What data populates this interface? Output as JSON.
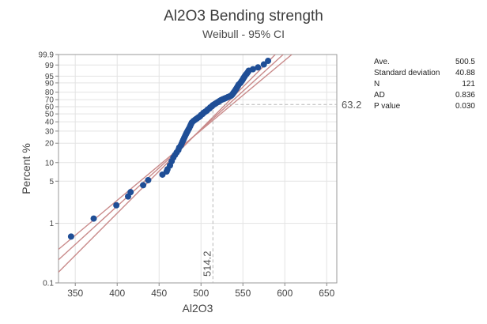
{
  "chart_data": {
    "type": "scatter",
    "title": "Al2O3 Bending strength",
    "subtitle": "Weibull - 95% CI",
    "xlabel": "Al2O3",
    "ylabel": "Percent %",
    "xlim": [
      330,
      662
    ],
    "x_ticks": [
      350,
      400,
      450,
      500,
      550,
      600,
      650
    ],
    "y_scale": "weibull",
    "ylim": [
      0.1,
      99.9
    ],
    "y_ticks": [
      "0.1",
      "1",
      "5",
      "10",
      "20",
      "30",
      "40",
      "50",
      "60",
      "70",
      "80",
      "90",
      "95",
      "99",
      "99.9"
    ],
    "fit": {
      "scale": 514.2,
      "shape": 12.8
    },
    "ci_band": {
      "lower_shape": 11.5,
      "upper_shape": 14.3
    },
    "reference": {
      "x_label": "514.2",
      "y_label": "63.2",
      "x": 514.2,
      "y": 63.2
    },
    "points": [
      [
        345,
        0.6
      ],
      [
        372,
        1.2
      ],
      [
        399,
        2.0
      ],
      [
        413,
        2.8
      ],
      [
        416,
        3.3
      ],
      [
        431,
        4.3
      ],
      [
        437,
        5.2
      ],
      [
        454,
        6.4
      ],
      [
        459,
        7.2
      ],
      [
        460,
        7.8
      ],
      [
        463,
        9.0
      ],
      [
        465,
        10.5
      ],
      [
        467,
        12.0
      ],
      [
        469,
        13.2
      ],
      [
        471,
        14.5
      ],
      [
        473,
        15.8
      ],
      [
        474,
        17.2
      ],
      [
        476,
        18.5
      ],
      [
        477,
        19.8
      ],
      [
        478,
        21.2
      ],
      [
        479,
        22.5
      ],
      [
        480,
        24.0
      ],
      [
        481,
        25.5
      ],
      [
        482,
        27.0
      ],
      [
        483,
        28.5
      ],
      [
        484,
        30.0
      ],
      [
        485,
        31.5
      ],
      [
        486,
        33.0
      ],
      [
        487,
        35.0
      ],
      [
        488,
        37.0
      ],
      [
        489,
        39.0
      ],
      [
        491,
        41.0
      ],
      [
        493,
        42.5
      ],
      [
        495,
        44.0
      ],
      [
        497,
        45.5
      ],
      [
        499,
        47.0
      ],
      [
        500,
        48.5
      ],
      [
        502,
        50.0
      ],
      [
        503,
        51.5
      ],
      [
        505,
        53.0
      ],
      [
        507,
        54.5
      ],
      [
        508,
        56.0
      ],
      [
        510,
        57.5
      ],
      [
        511,
        59.0
      ],
      [
        513,
        60.5
      ],
      [
        514,
        62.0
      ],
      [
        516,
        63.5
      ],
      [
        518,
        65.0
      ],
      [
        520,
        66.5
      ],
      [
        522,
        68.0
      ],
      [
        524,
        69.5
      ],
      [
        526,
        70.5
      ],
      [
        528,
        71.5
      ],
      [
        530,
        72.5
      ],
      [
        532,
        73.5
      ],
      [
        534,
        74.5
      ],
      [
        536,
        75.5
      ],
      [
        537,
        76.5
      ],
      [
        538,
        78.0
      ],
      [
        539,
        79.5
      ],
      [
        540,
        81.0
      ],
      [
        541,
        82.5
      ],
      [
        542,
        84.0
      ],
      [
        543,
        85.5
      ],
      [
        544,
        87.0
      ],
      [
        545,
        88.5
      ],
      [
        547,
        90.0
      ],
      [
        548,
        91.0
      ],
      [
        549,
        92.0
      ],
      [
        550,
        93.0
      ],
      [
        551,
        94.0
      ],
      [
        552,
        94.8
      ],
      [
        553,
        95.5
      ],
      [
        554,
        96.0
      ],
      [
        555,
        96.5
      ],
      [
        556,
        97.0
      ],
      [
        557,
        97.5
      ],
      [
        562,
        98.0
      ],
      [
        568,
        98.5
      ],
      [
        575,
        99.1
      ],
      [
        580,
        99.55
      ]
    ]
  },
  "stats": [
    {
      "label": "Ave.",
      "value": "500.5"
    },
    {
      "label": "Standard deviation",
      "value": "40.88"
    },
    {
      "label": "N",
      "value": "121"
    },
    {
      "label": "AD",
      "value": "0.836"
    },
    {
      "label": "P value",
      "value": "0.030"
    }
  ],
  "colors": {
    "points": "#1f4e96",
    "fit": "#c98a8a",
    "grid": "#e3e3e3",
    "ref": "#b5b5b5"
  }
}
